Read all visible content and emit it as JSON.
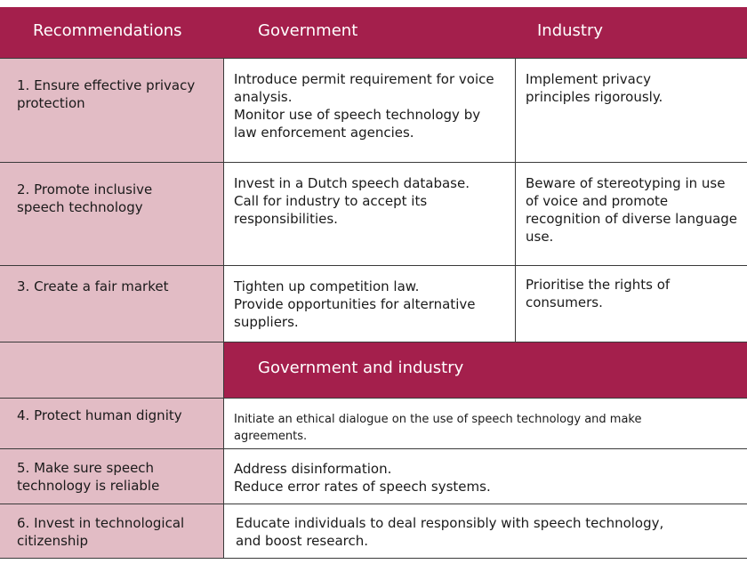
{
  "header": {
    "recommendations": "Recommendations",
    "government": "Government",
    "industry": "Industry"
  },
  "rows": [
    {
      "recommendation": "1. Ensure effective privacy\nprotection",
      "government": "Introduce permit requirement for voice\nanalysis.\nMonitor use of speech technology by\nlaw enforcement agencies.",
      "industry": "Implement privacy\nprinciples rigorously."
    },
    {
      "recommendation": "2. Promote inclusive\nspeech technology",
      "government": "Invest in a Dutch speech database.\nCall for industry to accept its\nresponsibilities.",
      "industry": "Beware of stereotyping in use\nof voice and promote\nrecognition of diverse language\nuse."
    },
    {
      "recommendation": "3. Create a fair market",
      "government": "Tighten up competition law.\nProvide opportunities for alternative\nsuppliers.",
      "industry": "Prioritise the rights of\nconsumers."
    }
  ],
  "joint_header": "Government and industry",
  "joint_rows": [
    {
      "recommendation": "4. Protect human dignity",
      "action": "Initiate an ethical dialogue on the use of speech technology and make\nagreements."
    },
    {
      "recommendation": "5. Make sure speech\ntechnology is reliable",
      "action": "Address disinformation.\nReduce error rates of speech systems."
    },
    {
      "recommendation": "6. Invest in technological\ncitizenship",
      "action": "Educate individuals to deal responsibly with speech technology,\nand boost research."
    }
  ],
  "colors": {
    "header_bg": "#a41f4c",
    "recommendation_bg": "#e2bcc5",
    "body_bg": "#ffffff",
    "grid": "#3a3a3a"
  }
}
